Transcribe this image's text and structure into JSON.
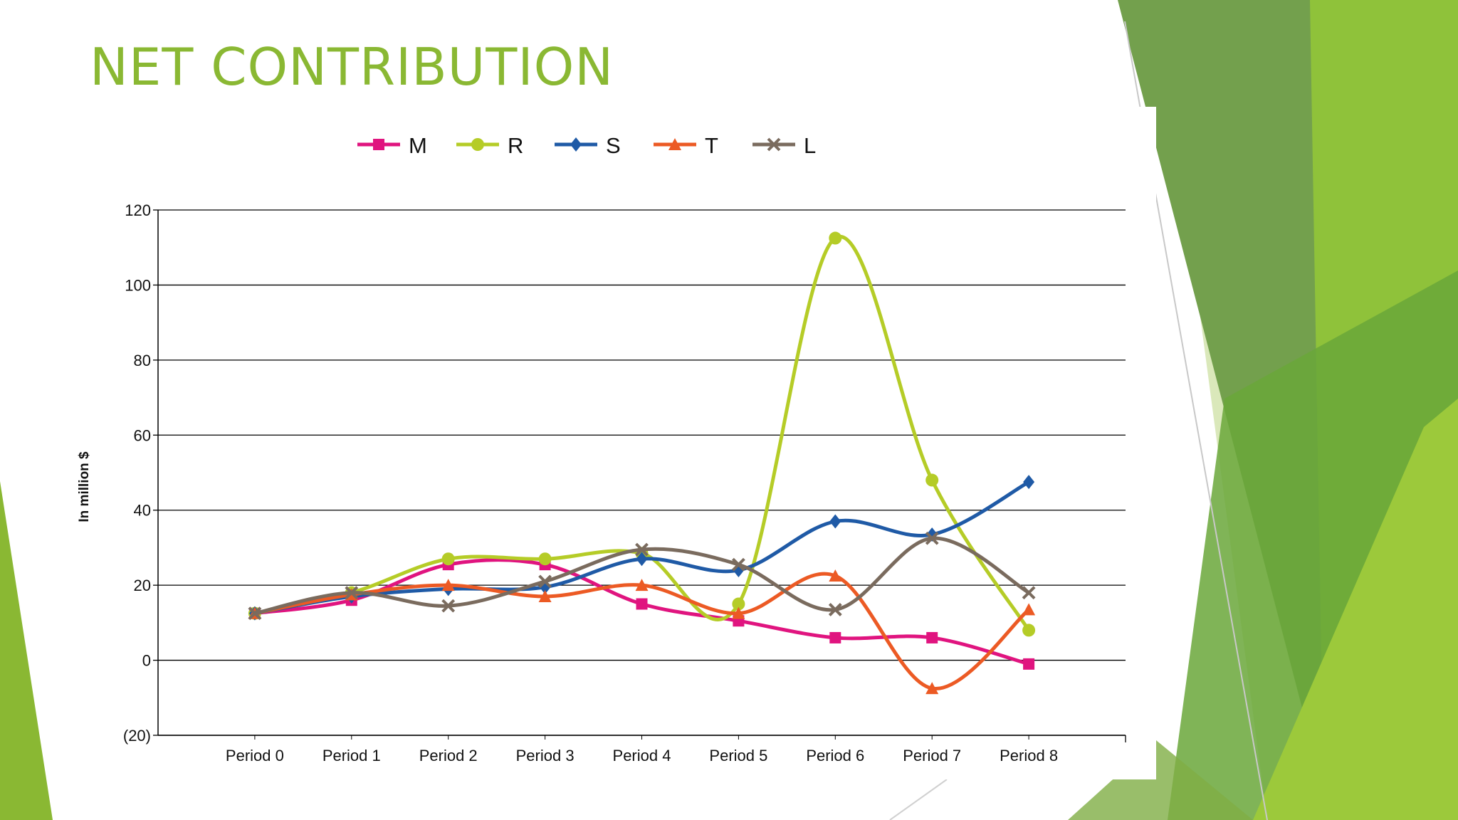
{
  "slide": {
    "title": "NET CONTRIBUTION",
    "accent_color": "#8ab833"
  },
  "chart_data": {
    "type": "line",
    "title": "",
    "xlabel": "",
    "ylabel": "In million $",
    "categories": [
      "Period 0",
      "Period 1",
      "Period 2",
      "Period 3",
      "Period 4",
      "Period 5",
      "Period 6",
      "Period 7",
      "Period 8"
    ],
    "ylim": [
      -20,
      120
    ],
    "yticks": [
      120,
      100,
      80,
      60,
      40,
      20,
      0,
      -20
    ],
    "ytick_labels": [
      "120",
      "100",
      "80",
      "60",
      "40",
      "20",
      "0",
      "(20)"
    ],
    "grid": true,
    "smooth": true,
    "legend_position": "top-center",
    "series": [
      {
        "name": "M",
        "color": "#e0147f",
        "marker": "square",
        "values": [
          12.5,
          16,
          25.5,
          25.5,
          15,
          10.5,
          6,
          6,
          -1
        ]
      },
      {
        "name": "R",
        "color": "#b5cc27",
        "marker": "circle",
        "values": [
          12.5,
          18,
          27,
          27,
          28.5,
          15,
          112.5,
          48,
          8
        ]
      },
      {
        "name": "S",
        "color": "#1f5aa6",
        "marker": "diamond",
        "values": [
          12.5,
          17,
          19,
          19.5,
          27,
          24,
          37,
          33.5,
          47.5
        ]
      },
      {
        "name": "T",
        "color": "#ec5a24",
        "marker": "triangle",
        "values": [
          12.5,
          17.5,
          20,
          17,
          20,
          12.5,
          22.5,
          -7.5,
          13.5
        ]
      },
      {
        "name": "L",
        "color": "#7a6b5e",
        "marker": "x",
        "values": [
          12.5,
          18,
          14.5,
          21,
          29.5,
          25.5,
          13.5,
          32.5,
          18
        ]
      }
    ]
  }
}
